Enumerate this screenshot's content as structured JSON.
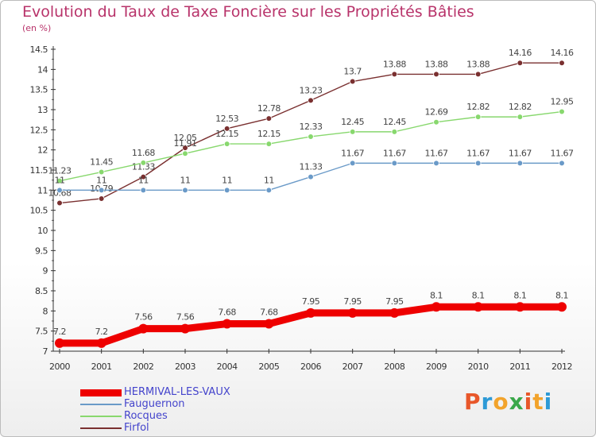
{
  "title": "Evolution du Taux de Taxe Foncière sur les Propriétés Bâties",
  "subtitle": "(en %)",
  "brand": {
    "letters": [
      "P",
      "r",
      "o",
      "x",
      "i",
      "t",
      "i"
    ],
    "colors": [
      "#e8572a",
      "#2d9ad6",
      "#f2a32b",
      "#3aa84a",
      "#e8572a",
      "#f2a32b",
      "#2d9ad6"
    ]
  },
  "chart_data": {
    "type": "line",
    "categories": [
      "2000",
      "2001",
      "2002",
      "2003",
      "2004",
      "2005",
      "2006",
      "2007",
      "2008",
      "2009",
      "2010",
      "2011",
      "2012"
    ],
    "ylim": [
      7,
      14.5
    ],
    "yticks": [
      "7",
      "7.5",
      "8",
      "8.5",
      "9",
      "9.5",
      "10",
      "10.5",
      "11",
      "11.5",
      "12",
      "12.5",
      "13",
      "13.5",
      "14",
      "14.5"
    ],
    "grid": false,
    "legend_position": "bottom-left",
    "series": [
      {
        "name": "HERMIVAL-LES-VAUX",
        "color": "#ee0000",
        "values": [
          7.2,
          7.2,
          7.56,
          7.56,
          7.68,
          7.68,
          7.95,
          7.95,
          7.95,
          8.1,
          8.1,
          8.1,
          8.1
        ],
        "labels": [
          "7.2",
          "7.2",
          "7.56",
          "7.56",
          "7.68",
          "7.68",
          "7.95",
          "7.95",
          "7.95",
          "8.1",
          "8.1",
          "8.1",
          "8.1"
        ]
      },
      {
        "name": "Fauguernon",
        "color": "#6a9ac8",
        "values": [
          11,
          11,
          11,
          11,
          11,
          11,
          11.33,
          11.67,
          11.67,
          11.67,
          11.67,
          11.67,
          11.67
        ],
        "labels": [
          "11",
          "11",
          "11",
          "11",
          "11",
          "11",
          "11.33",
          "11.67",
          "11.67",
          "11.67",
          "11.67",
          "11.67",
          "11.67"
        ]
      },
      {
        "name": "Rocques",
        "color": "#88d86e",
        "values": [
          11.23,
          11.45,
          11.68,
          11.91,
          12.15,
          12.15,
          12.33,
          12.45,
          12.45,
          12.69,
          12.82,
          12.82,
          12.95
        ],
        "labels": [
          "11.23",
          "11.45",
          "11.68",
          "11.91",
          "12.15",
          "12.15",
          "12.33",
          "12.45",
          "12.45",
          "12.69",
          "12.82",
          "12.82",
          "12.95"
        ]
      },
      {
        "name": "Firfol",
        "color": "#7a3030",
        "values": [
          10.68,
          10.79,
          11.33,
          12.05,
          12.53,
          12.78,
          13.23,
          13.7,
          13.88,
          13.88,
          13.88,
          14.16,
          14.16
        ],
        "labels": [
          "10.68",
          "10.79",
          "11.33",
          "12.05",
          "12.53",
          "12.78",
          "13.23",
          "13.7",
          "13.88",
          "13.88",
          "13.88",
          "14.16",
          "14.16"
        ]
      }
    ]
  }
}
